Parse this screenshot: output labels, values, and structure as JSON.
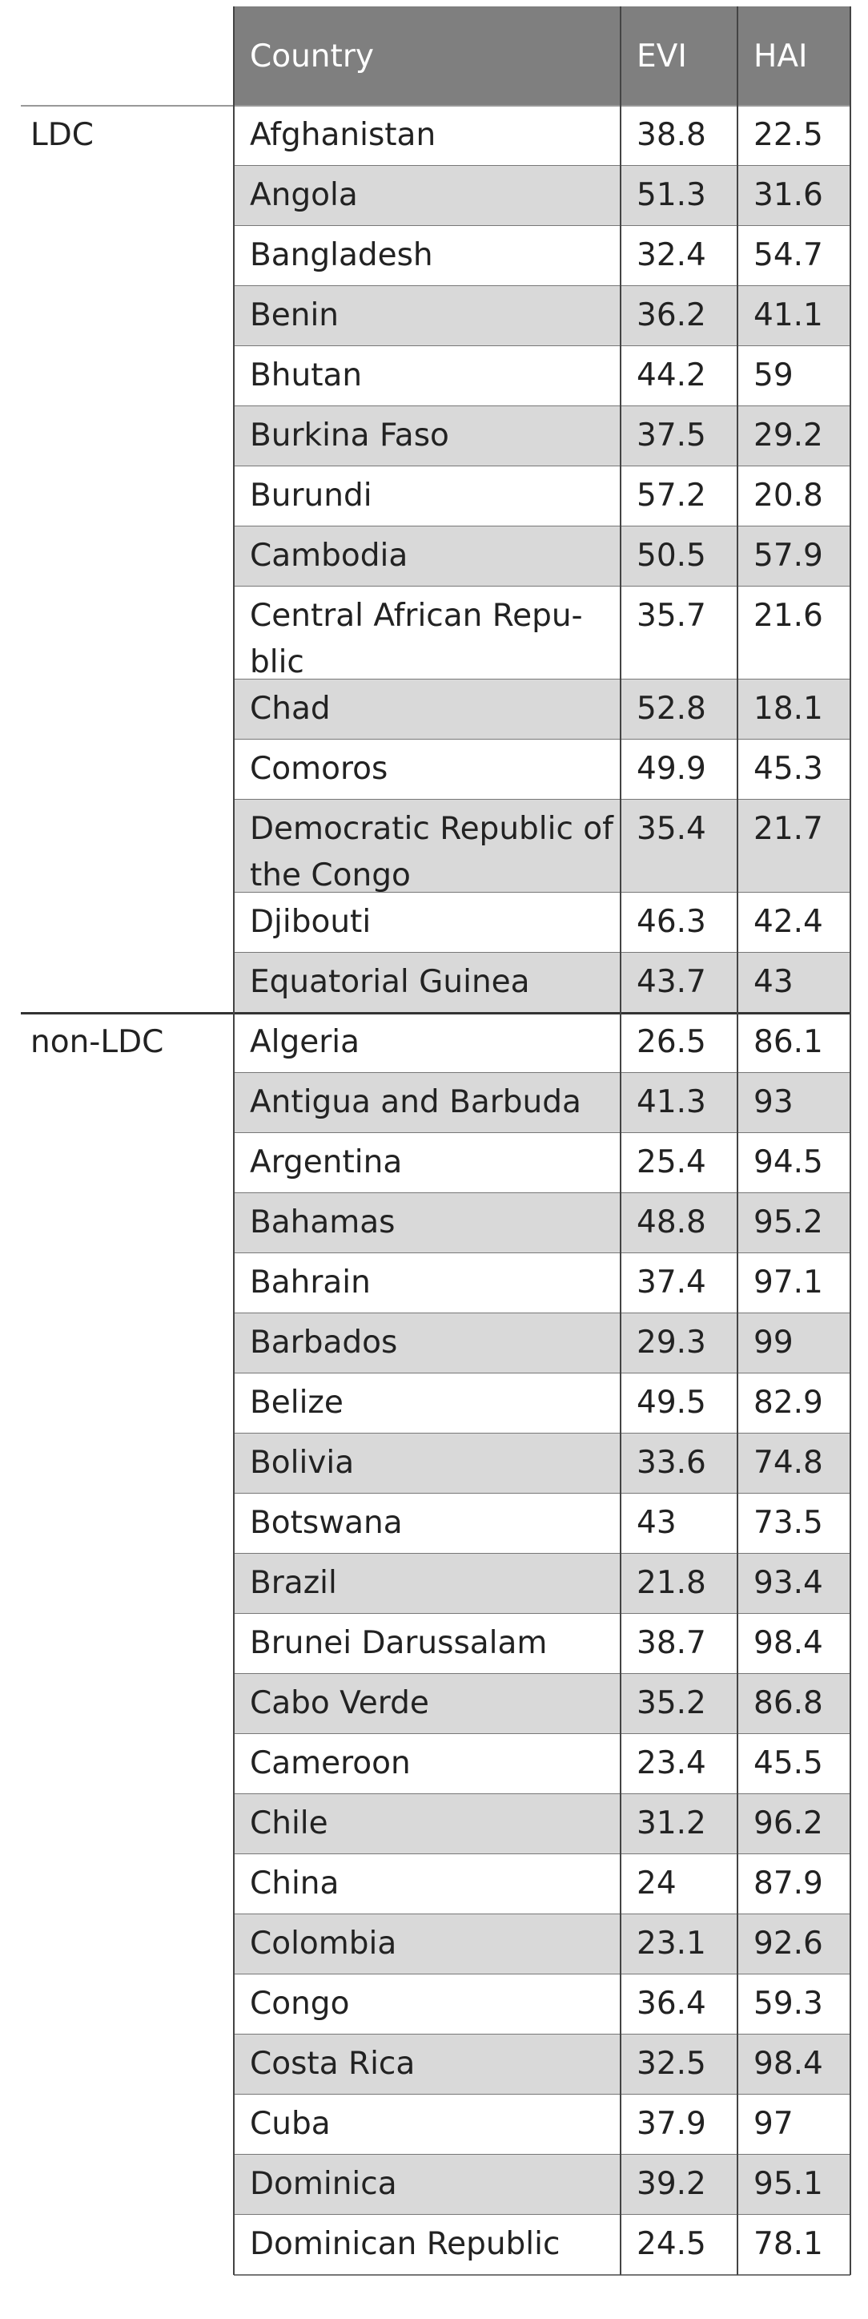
{
  "header": {
    "country": "Country",
    "evi": "EVI",
    "hai": "HAI"
  },
  "groups": [
    {
      "label": "LDC",
      "rows": [
        {
          "country": "Afghanistan",
          "evi": "38.8",
          "hai": "22.5"
        },
        {
          "country": "Angola",
          "evi": "51.3",
          "hai": "31.6"
        },
        {
          "country": "Bangladesh",
          "evi": "32.4",
          "hai": "54.7"
        },
        {
          "country": "Benin",
          "evi": "36.2",
          "hai": "41.1"
        },
        {
          "country": "Bhutan",
          "evi": "44.2",
          "hai": "59"
        },
        {
          "country": "Burkina Faso",
          "evi": "37.5",
          "hai": "29.2"
        },
        {
          "country": "Burundi",
          "evi": "57.2",
          "hai": "20.8"
        },
        {
          "country": "Cambodia",
          "evi": "50.5",
          "hai": "57.9"
        },
        {
          "country": "Central African Repu-\nblic",
          "evi": "35.7",
          "hai": "21.6"
        },
        {
          "country": "Chad",
          "evi": "52.8",
          "hai": "18.1"
        },
        {
          "country": "Comoros",
          "evi": "49.9",
          "hai": "45.3"
        },
        {
          "country": "Democratic Republic of\nthe Congo",
          "evi": "35.4",
          "hai": "21.7"
        },
        {
          "country": "Djibouti",
          "evi": "46.3",
          "hai": "42.4"
        },
        {
          "country": "Equatorial Guinea",
          "evi": "43.7",
          "hai": "43"
        }
      ]
    },
    {
      "label": "non-LDC",
      "rows": [
        {
          "country": "Algeria",
          "evi": "26.5",
          "hai": "86.1"
        },
        {
          "country": "Antigua and Barbuda",
          "evi": "41.3",
          "hai": "93"
        },
        {
          "country": "Argentina",
          "evi": "25.4",
          "hai": "94.5"
        },
        {
          "country": "Bahamas",
          "evi": "48.8",
          "hai": "95.2"
        },
        {
          "country": "Bahrain",
          "evi": "37.4",
          "hai": "97.1"
        },
        {
          "country": "Barbados",
          "evi": "29.3",
          "hai": "99"
        },
        {
          "country": "Belize",
          "evi": "49.5",
          "hai": "82.9"
        },
        {
          "country": "Bolivia",
          "evi": "33.6",
          "hai": "74.8"
        },
        {
          "country": "Botswana",
          "evi": "43",
          "hai": "73.5"
        },
        {
          "country": "Brazil",
          "evi": "21.8",
          "hai": "93.4"
        },
        {
          "country": "Brunei Darussalam",
          "evi": "38.7",
          "hai": "98.4"
        },
        {
          "country": "Cabo Verde",
          "evi": "35.2",
          "hai": "86.8"
        },
        {
          "country": "Cameroon",
          "evi": "23.4",
          "hai": "45.5"
        },
        {
          "country": "Chile",
          "evi": "31.2",
          "hai": "96.2"
        },
        {
          "country": "China",
          "evi": "24",
          "hai": "87.9"
        },
        {
          "country": "Colombia",
          "evi": "23.1",
          "hai": "92.6"
        },
        {
          "country": "Congo",
          "evi": "36.4",
          "hai": "59.3"
        },
        {
          "country": "Costa Rica",
          "evi": "32.5",
          "hai": "98.4"
        },
        {
          "country": "Cuba",
          "evi": "37.9",
          "hai": "97"
        },
        {
          "country": "Dominica",
          "evi": "39.2",
          "hai": "95.1"
        },
        {
          "country": "Dominican Republic",
          "evi": "24.5",
          "hai": "78.1"
        }
      ]
    }
  ],
  "colors": {
    "header_bg": "#7f7f7f",
    "header_text": "#ffffff",
    "stripe": "#d9d9d9",
    "plain": "#ffffff",
    "text": "#222222"
  }
}
